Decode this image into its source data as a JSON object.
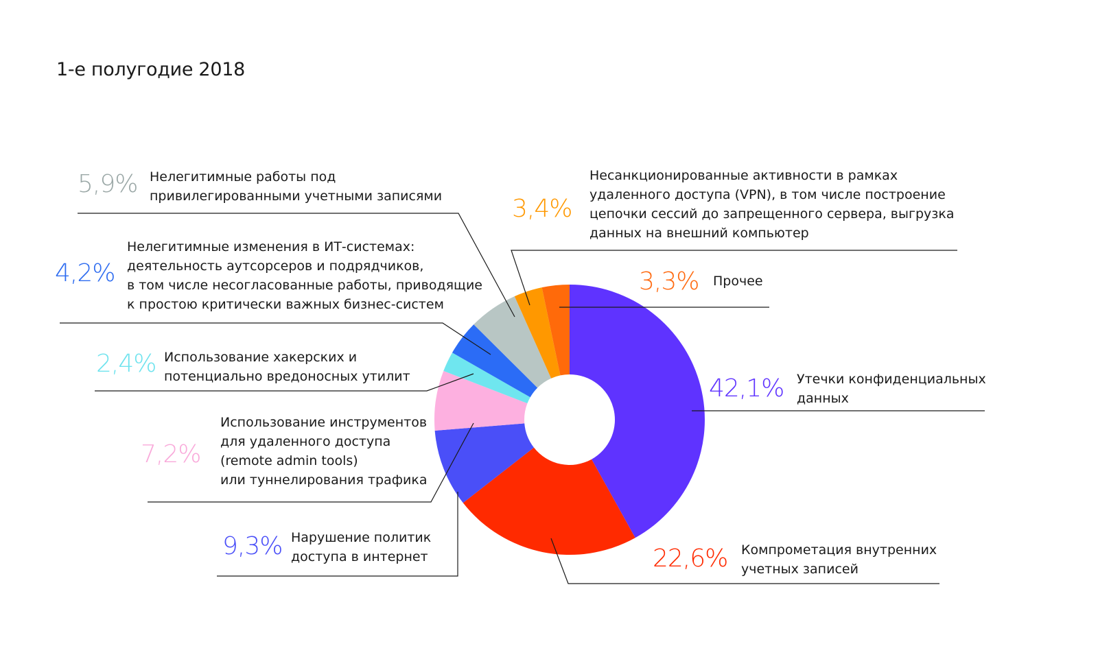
{
  "chart_data": {
    "type": "pie",
    "donut": true,
    "title": "1-е полугодие 2018",
    "start": "12 o'clock, clockwise",
    "slices": [
      {
        "label": "Утечки конфиденциальных данных",
        "value": 42.1,
        "value_label": "42,1%",
        "color": "#5f33ff"
      },
      {
        "label": "Компрометация внутренних учетных записей",
        "value": 22.6,
        "value_label": "22,6%",
        "color": "#ff2a00"
      },
      {
        "label": "Нарушение политик доступа в интернет",
        "value": 9.3,
        "value_label": "9,3%",
        "color": "#4a4ff8"
      },
      {
        "label": "Использование инструментов для удаленного доступа (remote admin tools) или туннелирования трафика",
        "value": 7.2,
        "value_label": "7,2%",
        "color": "#fdb0e0"
      },
      {
        "label": "Использование хакерских и потенциально вредоносных утилит",
        "value": 2.4,
        "value_label": "2,4%",
        "color": "#6fe6ef"
      },
      {
        "label": "Нелегитимные изменения в ИТ-системах: деятельность аутсорсеров и подрядчиков, в том числе несогласованные работы, приводящие к простою критически важных бизнес-систем",
        "value": 4.2,
        "value_label": "4,2%",
        "color": "#2b6cf6"
      },
      {
        "label": "Нелегитимные работы под привилегированными учетными записями",
        "value": 5.9,
        "value_label": "5,9%",
        "color": "#b8c6c4"
      },
      {
        "label": "Несанкционированные активности в рамках удаленного доступа (VPN), в том числе построение цепочки сессий до запрещенного сервера, выгрузка данных на внешний компьютер",
        "value": 3.4,
        "value_label": "3,4%",
        "color": "#ff9800"
      },
      {
        "label": "Прочее",
        "value": 3.3,
        "value_label": "3,3%",
        "color": "#ff6a0a"
      }
    ],
    "label_lines": [
      [
        "Утечки конфиденциальных",
        "данных"
      ],
      [
        "Компрометация внутренних",
        "учетных записей"
      ],
      [
        "Нарушение политик",
        "доступа в интернет"
      ],
      [
        "Использование инструментов",
        "для удаленного доступа",
        "(remote admin tools)",
        "или туннелирования трафика"
      ],
      [
        "Использование хакерских и",
        "потенциально вредоносных утилит"
      ],
      [
        "Нелегитимные изменения в ИТ-системах:",
        "деятельность аутсорсеров и подрядчиков,",
        "в том числе несогласованные работы, приводящие",
        "к простою критически важных бизнес-систем"
      ],
      [
        "Нелегитимные работы под",
        "привилегированными учетными записями"
      ],
      [
        "Несанкционированные активности в рамках",
        "удаленного доступа (VPN), в том числе построение",
        "цепочки сессий до запрещенного сервера, выгрузка",
        "данных на внешний компьютер"
      ],
      [
        "Прочее"
      ]
    ],
    "pct_colors": [
      "#5f33ff",
      "#ff2a00",
      "#4a4ff8",
      "#f9a9da",
      "#6fe3ee",
      "#2e6cf0",
      "#9aa7a6",
      "#ff9800",
      "#ff6a10"
    ]
  }
}
